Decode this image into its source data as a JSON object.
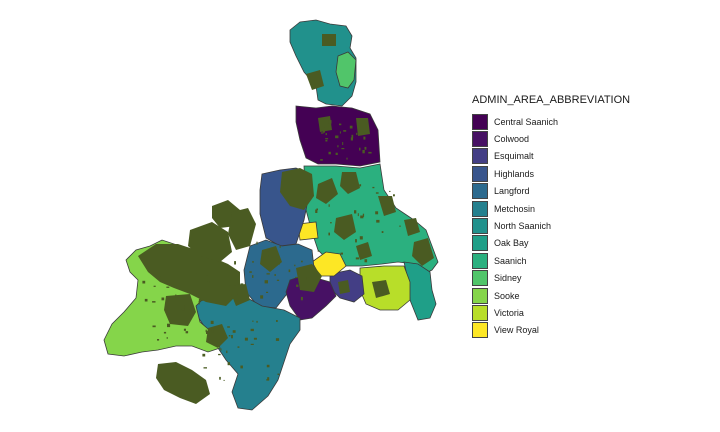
{
  "legend": {
    "title": "ADMIN_AREA_ABBREVIATION",
    "items": [
      {
        "label": "Central Saanich",
        "color": "#440154"
      },
      {
        "label": "Colwood",
        "color": "#471164"
      },
      {
        "label": "Esquimalt",
        "color": "#433E85"
      },
      {
        "label": "Highlands",
        "color": "#38558C"
      },
      {
        "label": "Langford",
        "color": "#2C6A8E"
      },
      {
        "label": "Metchosin",
        "color": "#25808E"
      },
      {
        "label": "North Saanich",
        "color": "#21918C"
      },
      {
        "label": "Oak Bay",
        "color": "#1F9F88"
      },
      {
        "label": "Saanich",
        "color": "#2BB07F"
      },
      {
        "label": "Sidney",
        "color": "#51C56A"
      },
      {
        "label": "Sooke",
        "color": "#85D54A"
      },
      {
        "label": "Victoria",
        "color": "#B8DE29"
      },
      {
        "label": "View Royal",
        "color": "#FDE725"
      }
    ]
  },
  "colors": {
    "parks": "#4A5B22",
    "outline": "#3a3a3a"
  }
}
